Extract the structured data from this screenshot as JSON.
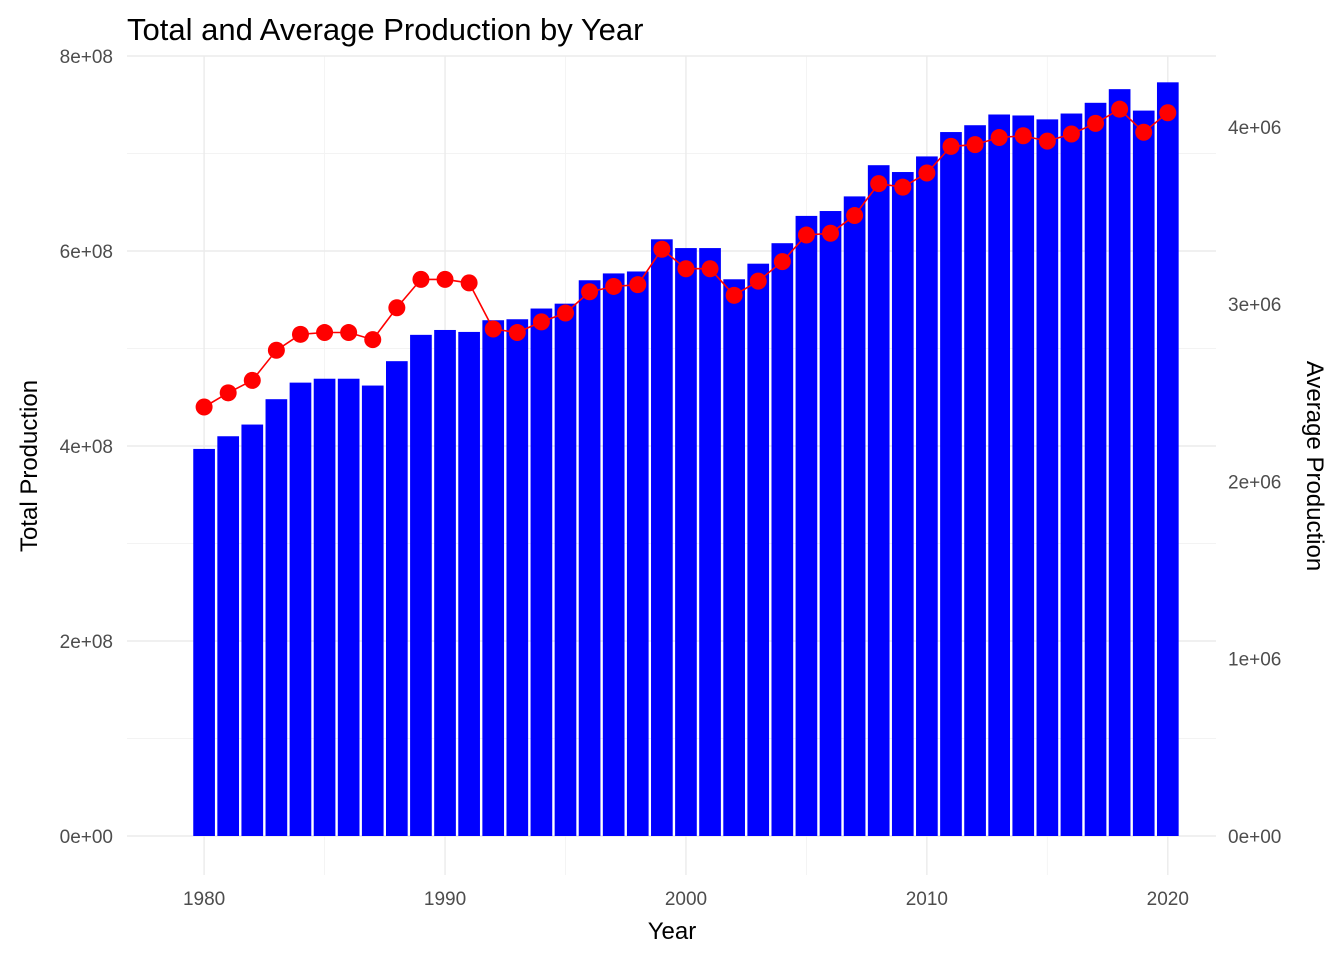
{
  "chart_data": {
    "type": "bar",
    "title": "Total and Average Production by Year",
    "xlabel": "Year",
    "ylabel": "Total Production",
    "ylabel_right": "Average Production",
    "x": [
      1980,
      1981,
      1982,
      1983,
      1984,
      1985,
      1986,
      1987,
      1988,
      1989,
      1990,
      1991,
      1992,
      1993,
      1994,
      1995,
      1996,
      1997,
      1998,
      1999,
      2000,
      2001,
      2002,
      2003,
      2004,
      2005,
      2006,
      2007,
      2008,
      2009,
      2010,
      2011,
      2012,
      2013,
      2014,
      2015,
      2016,
      2017,
      2018,
      2019,
      2020
    ],
    "xlim": [
      1976.8,
      2022.0
    ],
    "xticks": [
      1980,
      1990,
      2000,
      2010,
      2020
    ],
    "xtick_labels": [
      "1980",
      "1990",
      "2000",
      "2010",
      "2020"
    ],
    "ylim": [
      -40000000.0,
      800000000.0
    ],
    "yticks": [
      0,
      200000000.0,
      400000000.0,
      600000000.0,
      800000000.0
    ],
    "ytick_labels": [
      "0e+00",
      "2e+08",
      "4e+08",
      "6e+08",
      "8e+08"
    ],
    "ylim_right": [
      -220000.0,
      4400000.0
    ],
    "yticks_right": [
      0,
      1000000.0,
      2000000.0,
      3000000.0,
      4000000.0
    ],
    "ytick_labels_right": [
      "0e+00",
      "1e+06",
      "2e+06",
      "3e+06",
      "4e+06"
    ],
    "grid": true,
    "series": [
      {
        "type": "bar",
        "axis": "left",
        "color": "#0000ff",
        "values": [
          397000000,
          410000000,
          422000000,
          448000000,
          465000000,
          469000000,
          469000000,
          462000000,
          487000000,
          514000000,
          519000000,
          517000000,
          529000000,
          530000000,
          541000000,
          546000000,
          570000000,
          577000000,
          579000000,
          612000000,
          603000000,
          603000000,
          571000000,
          587000000,
          608000000,
          636000000,
          641000000,
          656000000,
          688000000,
          681000000,
          697000000,
          722000000,
          729000000,
          740000000,
          739000000,
          735000000,
          741000000,
          752000000,
          766000000,
          744000000,
          773000000
        ]
      },
      {
        "type": "line",
        "axis": "right",
        "color": "#ff0000",
        "values": [
          2420000,
          2500000,
          2570000,
          2740000,
          2830000,
          2840000,
          2840000,
          2800000,
          2980000,
          3140000,
          3140000,
          3120000,
          2860000,
          2840000,
          2900000,
          2950000,
          3070000,
          3100000,
          3110000,
          3310000,
          3200000,
          3200000,
          3050000,
          3130000,
          3240000,
          3390000,
          3400000,
          3500000,
          3680000,
          3660000,
          3740000,
          3890000,
          3900000,
          3940000,
          3950000,
          3920000,
          3960000,
          4020000,
          4100000,
          3970000,
          4080000
        ]
      }
    ]
  }
}
